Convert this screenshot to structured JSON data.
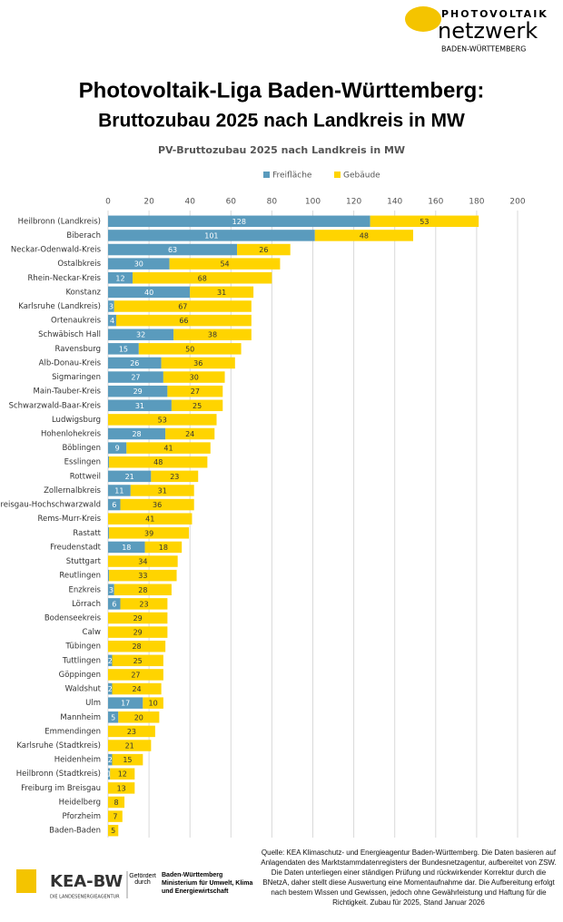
{
  "header": {
    "logo_top": "PHOTOVOLTAIK",
    "logo_main": "netzwerk",
    "logo_sub": "BADEN-WÜRTTEMBERG",
    "title": "Photovoltaik-Liga Baden-Württemberg:",
    "subtitle": "Bruttozubau 2025 nach Landkreis in MW"
  },
  "chart_data": {
    "type": "stacked_barh",
    "title": "PV-Bruttozubau 2025 nach Landkreis in MW",
    "categories": [
      "Heilbronn (Landkreis)",
      "Biberach",
      "Neckar-Odenwald-Kreis",
      "Ostalbkreis",
      "Rhein-Neckar-Kreis",
      "Konstanz",
      "Karlsruhe (Landkreis)",
      "Ortenaukreis",
      "Schwäbisch Hall",
      "Ravensburg",
      "Alb-Donau-Kreis",
      "Sigmaringen",
      "Main-Tauber-Kreis",
      "Schwarzwald-Baar-Kreis",
      "Ludwigsburg",
      "Hohenlohekreis",
      "Böblingen",
      "Esslingen",
      "Rottweil",
      "Zollernalbkreis",
      "Breisgau-Hochschwarzwald",
      "Rems-Murr-Kreis",
      "Rastatt",
      "Freudenstadt",
      "Stuttgart",
      "Reutlingen",
      "Enzkreis",
      "Lörrach",
      "Bodenseekreis",
      "Calw",
      "Tübingen",
      "Tuttlingen",
      "Göppingen",
      "Waldshut",
      "Ulm",
      "Mannheim",
      "Emmendingen",
      "Karlsruhe (Stadtkreis)",
      "Heidenheim",
      "Heilbronn (Stadtkreis)",
      "Freiburg im Breisgau",
      "Heidelberg",
      "Pforzheim",
      "Baden-Baden"
    ],
    "series": [
      {
        "name": "Freifläche",
        "color": "#5a9bbd",
        "values": [
          128,
          101,
          63,
          30,
          12,
          40,
          3,
          4,
          32,
          15,
          26,
          27,
          29,
          31,
          0,
          28,
          9,
          0.5,
          21,
          11,
          6,
          0,
          0.5,
          18,
          0,
          0.5,
          3,
          6,
          0,
          0,
          0,
          2,
          0,
          2,
          17,
          5,
          0,
          0,
          2,
          1,
          0,
          0,
          0,
          0
        ]
      },
      {
        "name": "Gebäude",
        "color": "#ffd400",
        "values": [
          53,
          48,
          26,
          54,
          68,
          31,
          67,
          66,
          38,
          50,
          36,
          30,
          27,
          25,
          53,
          24,
          41,
          48,
          23,
          31,
          36,
          41,
          39,
          18,
          34,
          33,
          28,
          23,
          29,
          29,
          28,
          25,
          27,
          24,
          10,
          20,
          23,
          21,
          15,
          12,
          13,
          8,
          7,
          5
        ]
      }
    ],
    "xlim": [
      0,
      200
    ],
    "xticks": [
      0,
      20,
      40,
      60,
      80,
      100,
      120,
      140,
      160,
      180,
      200
    ],
    "grid": true,
    "legend": "top"
  },
  "footer": {
    "kea": "KEA-BW",
    "kea_sub": "DIE LANDESENERGIEAGENTUR",
    "funded": "Gefördert durch",
    "ministry": "Baden-Württemberg Ministerium für Umwelt, Klima und Energiewirtschaft",
    "source": "Quelle: KEA Klimaschutz- und Energieagentur Baden-Württemberg. Die Daten basieren auf Anlagendaten des Marktstammdatenregisters der Bundesnetzagentur, aufbereitet von ZSW. Die Daten unterliegen einer ständigen Prüfung und rückwirkender Korrektur durch die BNetzA, daher stellt diese Auswertung eine Momentaufnahme dar. Die Aufbereitung erfolgt nach bestem Wissen und Gewissen, jedoch ohne Gewährleistung und Haftung für die Richtigkeit. Zubau für 2025, Stand Januar 2026"
  }
}
